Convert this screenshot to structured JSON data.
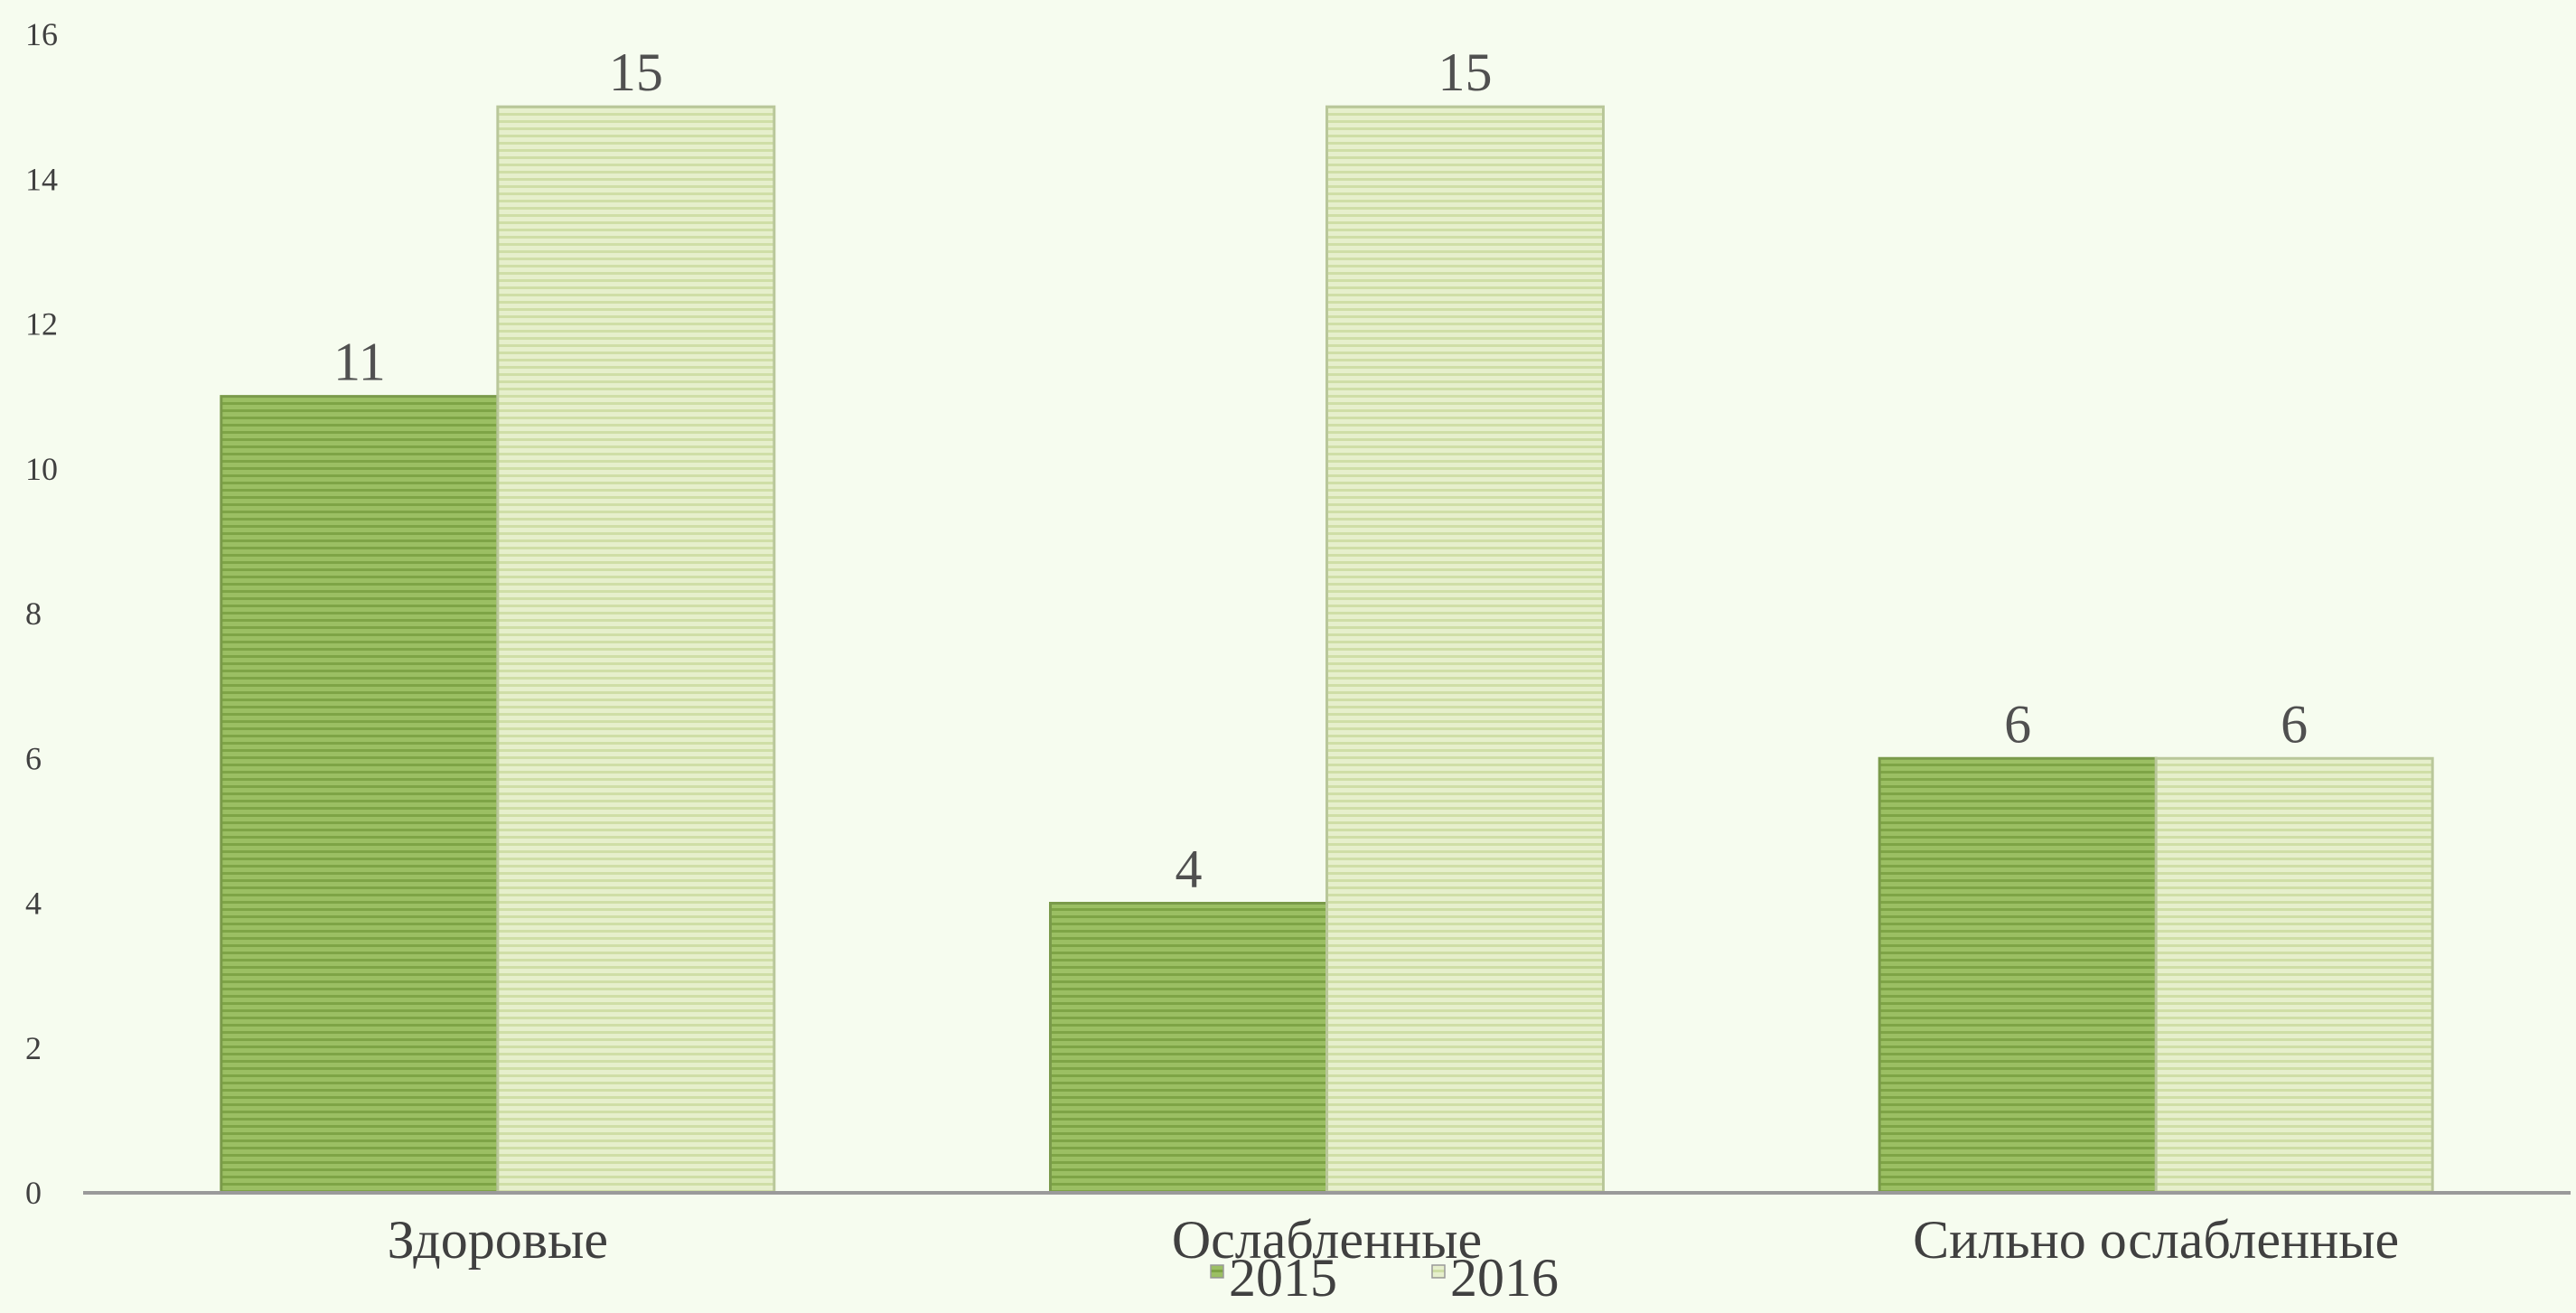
{
  "chart_data": {
    "type": "bar",
    "categories": [
      "Здоровые",
      "Ослабленные",
      "Сильно ослабленные"
    ],
    "series": [
      {
        "name": "2015",
        "values": [
          11,
          4,
          6
        ],
        "color": "#8fb55a"
      },
      {
        "name": "2016",
        "values": [
          15,
          15,
          6
        ],
        "color": "#dbe8b8"
      }
    ],
    "y_ticks": [
      "0",
      "2",
      "4",
      "6",
      "8",
      "10",
      "12",
      "14",
      "16"
    ],
    "ylim": [
      0,
      16
    ],
    "data_labels": true,
    "grid": false,
    "legend_position": "bottom",
    "title": "",
    "xlabel": "",
    "ylabel": ""
  }
}
